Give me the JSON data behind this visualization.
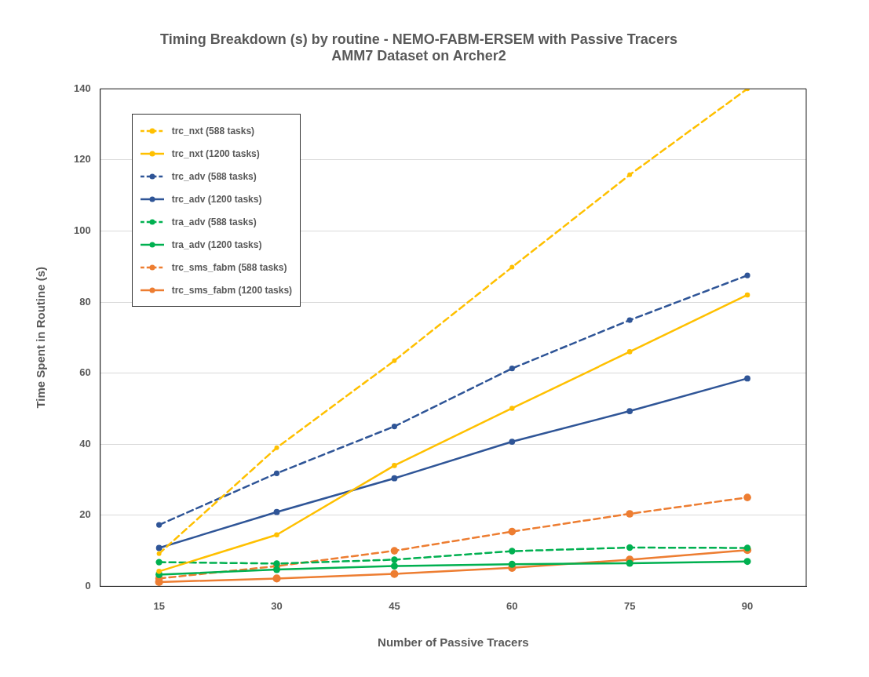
{
  "chart_data": {
    "type": "line",
    "title": "Timing Breakdown (s) by routine - NEMO-FABM-ERSEM with Passive Tracers",
    "subtitle": "AMM7 Dataset on Archer2",
    "xlabel": "Number of Passive Tracers",
    "ylabel": "Time Spent in Routine (s)",
    "categories": [
      "15",
      "30",
      "45",
      "60",
      "75",
      "90"
    ],
    "ylim": [
      0,
      140
    ],
    "yticks": [
      0,
      20,
      40,
      60,
      80,
      100,
      120,
      140
    ],
    "grid": "y",
    "legend": "top left",
    "marker": "circle",
    "series": [
      {
        "name": "trc_nxt (588 tasks)",
        "color": "#ffc000",
        "line_style": "dashed",
        "values": [
          9.2,
          39,
          63.5,
          89.8,
          115.8,
          140
        ]
      },
      {
        "name": "trc_nxt (1200 tasks)",
        "color": "#ffc000",
        "line_style": "solid",
        "values": [
          4.2,
          14.5,
          34,
          50.1,
          66,
          82
        ]
      },
      {
        "name": "trc_adv (588 tasks)",
        "color": "#2f5597",
        "line_style": "dashed",
        "values": [
          17.3,
          31.8,
          45,
          61.3,
          74.9,
          87.5
        ]
      },
      {
        "name": "trc_adv (1200 tasks)",
        "color": "#2f5597",
        "line_style": "solid",
        "values": [
          10.8,
          20.9,
          30.4,
          40.7,
          49.3,
          58.5
        ]
      },
      {
        "name": "tra_adv (588 tasks)",
        "color": "#00b050",
        "line_style": "dashed",
        "values": [
          6.8,
          6.4,
          7.5,
          9.9,
          10.9,
          10.8
        ]
      },
      {
        "name": "tra_adv (1200 tasks)",
        "color": "#00b050",
        "line_style": "solid",
        "values": [
          3.3,
          4.7,
          5.7,
          6.2,
          6.5,
          7.0
        ]
      },
      {
        "name": "trc_sms_fabm (588 tasks)",
        "color": "#ed7d31",
        "line_style": "dashed",
        "values": [
          2.2,
          5.7,
          10,
          15.4,
          20.4,
          25
        ]
      },
      {
        "name": "trc_sms_fabm (1200 tasks)",
        "color": "#ed7d31",
        "line_style": "solid",
        "values": [
          1.2,
          2.2,
          3.5,
          5.2,
          7.5,
          10.2
        ]
      }
    ]
  }
}
